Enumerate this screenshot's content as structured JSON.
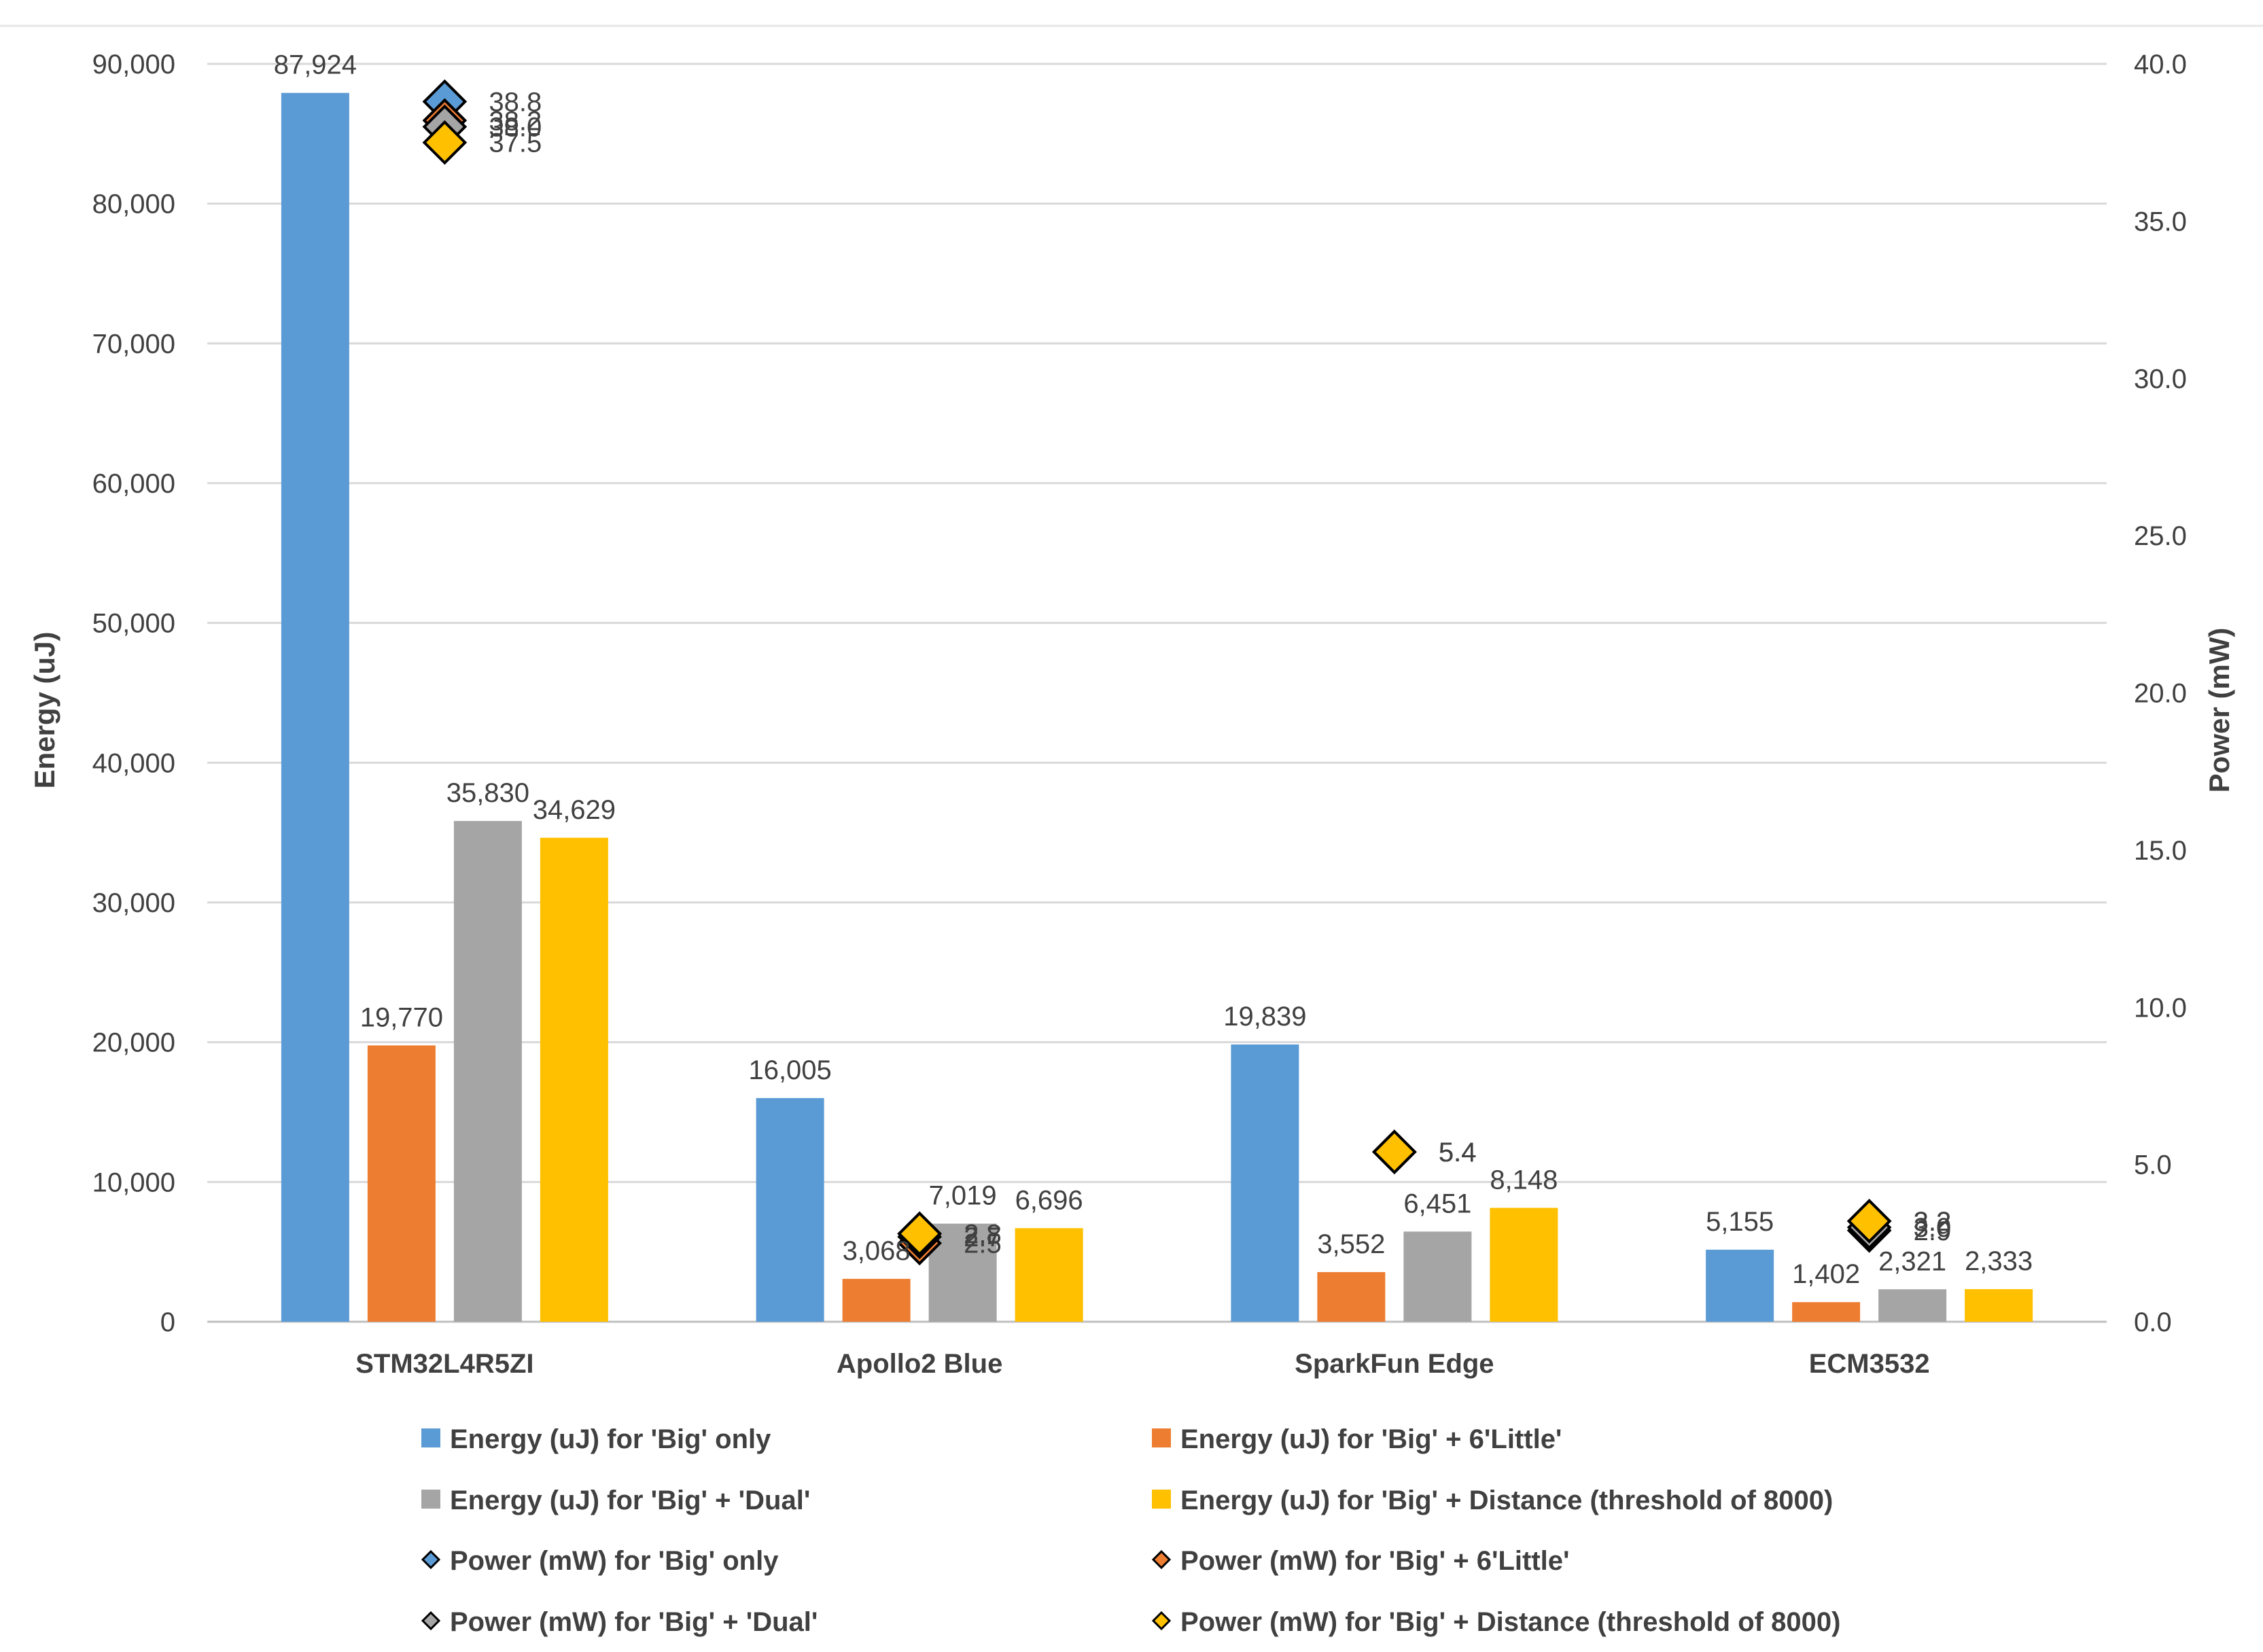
{
  "chart_data": {
    "type": "bar",
    "title": "",
    "xlabel": "",
    "ylabel": "Energy (uJ)",
    "y2label": "Power (mW)",
    "ylim": [
      0,
      90000
    ],
    "y2lim": [
      0,
      40
    ],
    "yticks": [
      0,
      10000,
      20000,
      30000,
      40000,
      50000,
      60000,
      70000,
      80000,
      90000
    ],
    "yticklabels": [
      "0",
      "10,000",
      "20,000",
      "30,000",
      "40,000",
      "50,000",
      "60,000",
      "70,000",
      "80,000",
      "90,000"
    ],
    "y2ticks": [
      0,
      5,
      10,
      15,
      20,
      25,
      30,
      35,
      40
    ],
    "y2ticklabels": [
      "0.0",
      "5.0",
      "10.0",
      "15.0",
      "20.0",
      "25.0",
      "30.0",
      "35.0",
      "40.0"
    ],
    "grid": true,
    "legend_position": "bottom",
    "categories": [
      "STM32L4R5ZI",
      "Apollo2 Blue",
      "SparkFun Edge",
      "ECM3532"
    ],
    "series": [
      {
        "name": "Energy (uJ) for 'Big' only",
        "axis": "left",
        "kind": "bar",
        "color": "#5B9BD5",
        "values": [
          87924,
          16005,
          19839,
          5155
        ],
        "labels": [
          "87,924",
          "16,005",
          "19,839",
          "5,155"
        ]
      },
      {
        "name": "Energy (uJ) for 'Big' + 6'Little'",
        "axis": "left",
        "kind": "bar",
        "color": "#ED7D31",
        "values": [
          19770,
          3068,
          3552,
          1402
        ],
        "labels": [
          "19,770",
          "3,068",
          "3,552",
          "1,402"
        ]
      },
      {
        "name": "Energy (uJ) for 'Big' + 'Dual'",
        "axis": "left",
        "kind": "bar",
        "color": "#A5A5A5",
        "values": [
          35830,
          7019,
          6451,
          2321
        ],
        "labels": [
          "35,830",
          "7,019",
          "6,451",
          "2,321"
        ]
      },
      {
        "name": "Energy (uJ) for 'Big' + Distance (threshold of 8000)",
        "axis": "left",
        "kind": "bar",
        "color": "#FFC000",
        "values": [
          34629,
          6696,
          8148,
          2333
        ],
        "labels": [
          "34,629",
          "6,696",
          "8,148",
          "2,333"
        ]
      },
      {
        "name": "Power (mW) for 'Big' only",
        "axis": "right",
        "kind": "marker",
        "color": "#5B9BD5",
        "values": [
          38.8,
          2.8,
          5.4,
          3.2
        ],
        "labels": [
          "38.8",
          "2.8",
          "5.4",
          "3.2"
        ]
      },
      {
        "name": "Power (mW) for 'Big' + 6'Little'",
        "axis": "right",
        "kind": "marker",
        "color": "#ED7D31",
        "values": [
          38.2,
          2.5,
          5.4,
          2.9
        ],
        "labels": [
          "38.2",
          "2.5",
          "5.4",
          "2.9"
        ]
      },
      {
        "name": "Power (mW) for 'Big' + 'Dual'",
        "axis": "right",
        "kind": "marker",
        "color": "#A5A5A5",
        "values": [
          38.0,
          2.7,
          5.4,
          3.0
        ],
        "labels": [
          "38.0",
          "2.7",
          "5.4",
          "3.0"
        ]
      },
      {
        "name": "Power (mW) for 'Big' + Distance (threshold of 8000)",
        "axis": "right",
        "kind": "marker",
        "color": "#FFC000",
        "values": [
          37.5,
          2.8,
          5.4,
          3.2
        ],
        "labels": [
          "37.5",
          "2.8",
          "5.4",
          "3.2"
        ]
      }
    ]
  }
}
